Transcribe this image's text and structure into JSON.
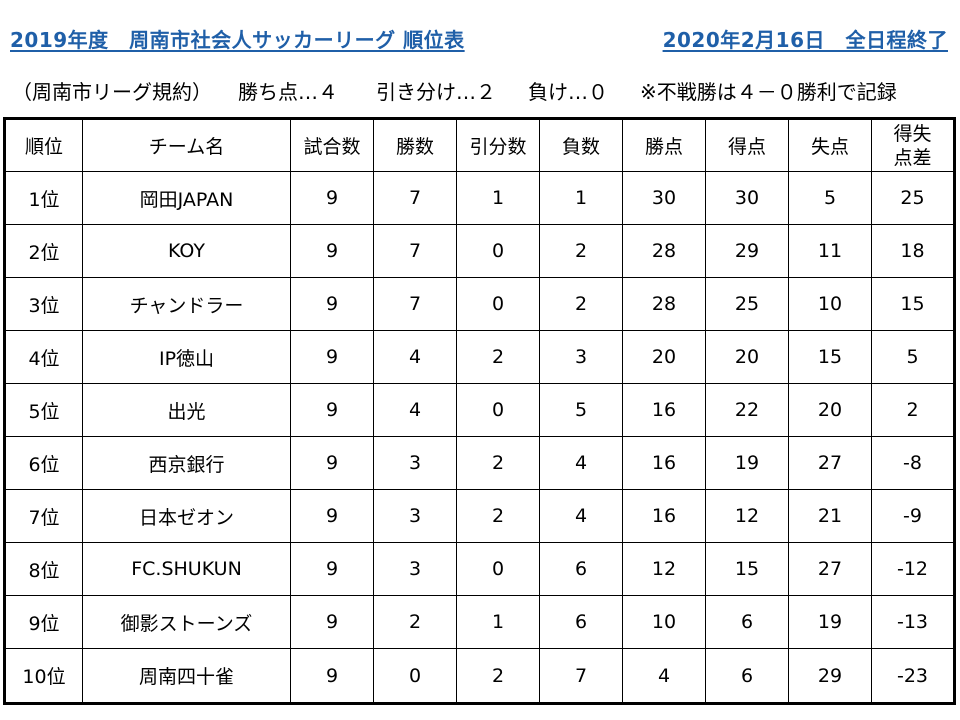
{
  "title": {
    "left": "2019年度　周南市社会人サッカーリーグ 順位表",
    "right": "2020年2月16日　全日程終了"
  },
  "rules": {
    "label": "（周南市リーグ規約）",
    "win": "勝ち点…４",
    "draw": "引き分け…２",
    "lose": "負け…０",
    "note": "※不戦勝は４－０勝利で記録"
  },
  "table": {
    "headers": [
      "順位",
      "チーム名",
      "試合数",
      "勝数",
      "引分数",
      "負数",
      "勝点",
      "得点",
      "失点",
      "得失点差"
    ],
    "header_gd_line1": "得失",
    "header_gd_line2": "点差",
    "rows": [
      {
        "rank": "1位",
        "team": "岡田JAPAN",
        "played": "9",
        "won": "7",
        "drawn": "1",
        "lost": "1",
        "points": "30",
        "gf": "30",
        "ga": "5",
        "gd": "25"
      },
      {
        "rank": "2位",
        "team": "KOY",
        "played": "9",
        "won": "7",
        "drawn": "0",
        "lost": "2",
        "points": "28",
        "gf": "29",
        "ga": "11",
        "gd": "18"
      },
      {
        "rank": "3位",
        "team": "チャンドラー",
        "played": "9",
        "won": "7",
        "drawn": "0",
        "lost": "2",
        "points": "28",
        "gf": "25",
        "ga": "10",
        "gd": "15"
      },
      {
        "rank": "4位",
        "team": "IP徳山",
        "played": "9",
        "won": "4",
        "drawn": "2",
        "lost": "3",
        "points": "20",
        "gf": "20",
        "ga": "15",
        "gd": "5"
      },
      {
        "rank": "5位",
        "team": "出光",
        "played": "9",
        "won": "4",
        "drawn": "0",
        "lost": "5",
        "points": "16",
        "gf": "22",
        "ga": "20",
        "gd": "2"
      },
      {
        "rank": "6位",
        "team": "西京銀行",
        "played": "9",
        "won": "3",
        "drawn": "2",
        "lost": "4",
        "points": "16",
        "gf": "19",
        "ga": "27",
        "gd": "-8"
      },
      {
        "rank": "7位",
        "team": "日本ゼオン",
        "played": "9",
        "won": "3",
        "drawn": "2",
        "lost": "4",
        "points": "16",
        "gf": "12",
        "ga": "21",
        "gd": "-9"
      },
      {
        "rank": "8位",
        "team": "FC.SHUKUN",
        "played": "9",
        "won": "3",
        "drawn": "0",
        "lost": "6",
        "points": "12",
        "gf": "15",
        "ga": "27",
        "gd": "-12"
      },
      {
        "rank": "9位",
        "team": "御影ストーンズ",
        "played": "9",
        "won": "2",
        "drawn": "1",
        "lost": "6",
        "points": "10",
        "gf": "6",
        "ga": "19",
        "gd": "-13"
      },
      {
        "rank": "10位",
        "team": "周南四十雀",
        "played": "9",
        "won": "0",
        "drawn": "2",
        "lost": "7",
        "points": "4",
        "gf": "6",
        "ga": "29",
        "gd": "-23"
      }
    ]
  },
  "colors": {
    "title": "#1f5fa8",
    "border": "#000000",
    "text": "#000000"
  }
}
